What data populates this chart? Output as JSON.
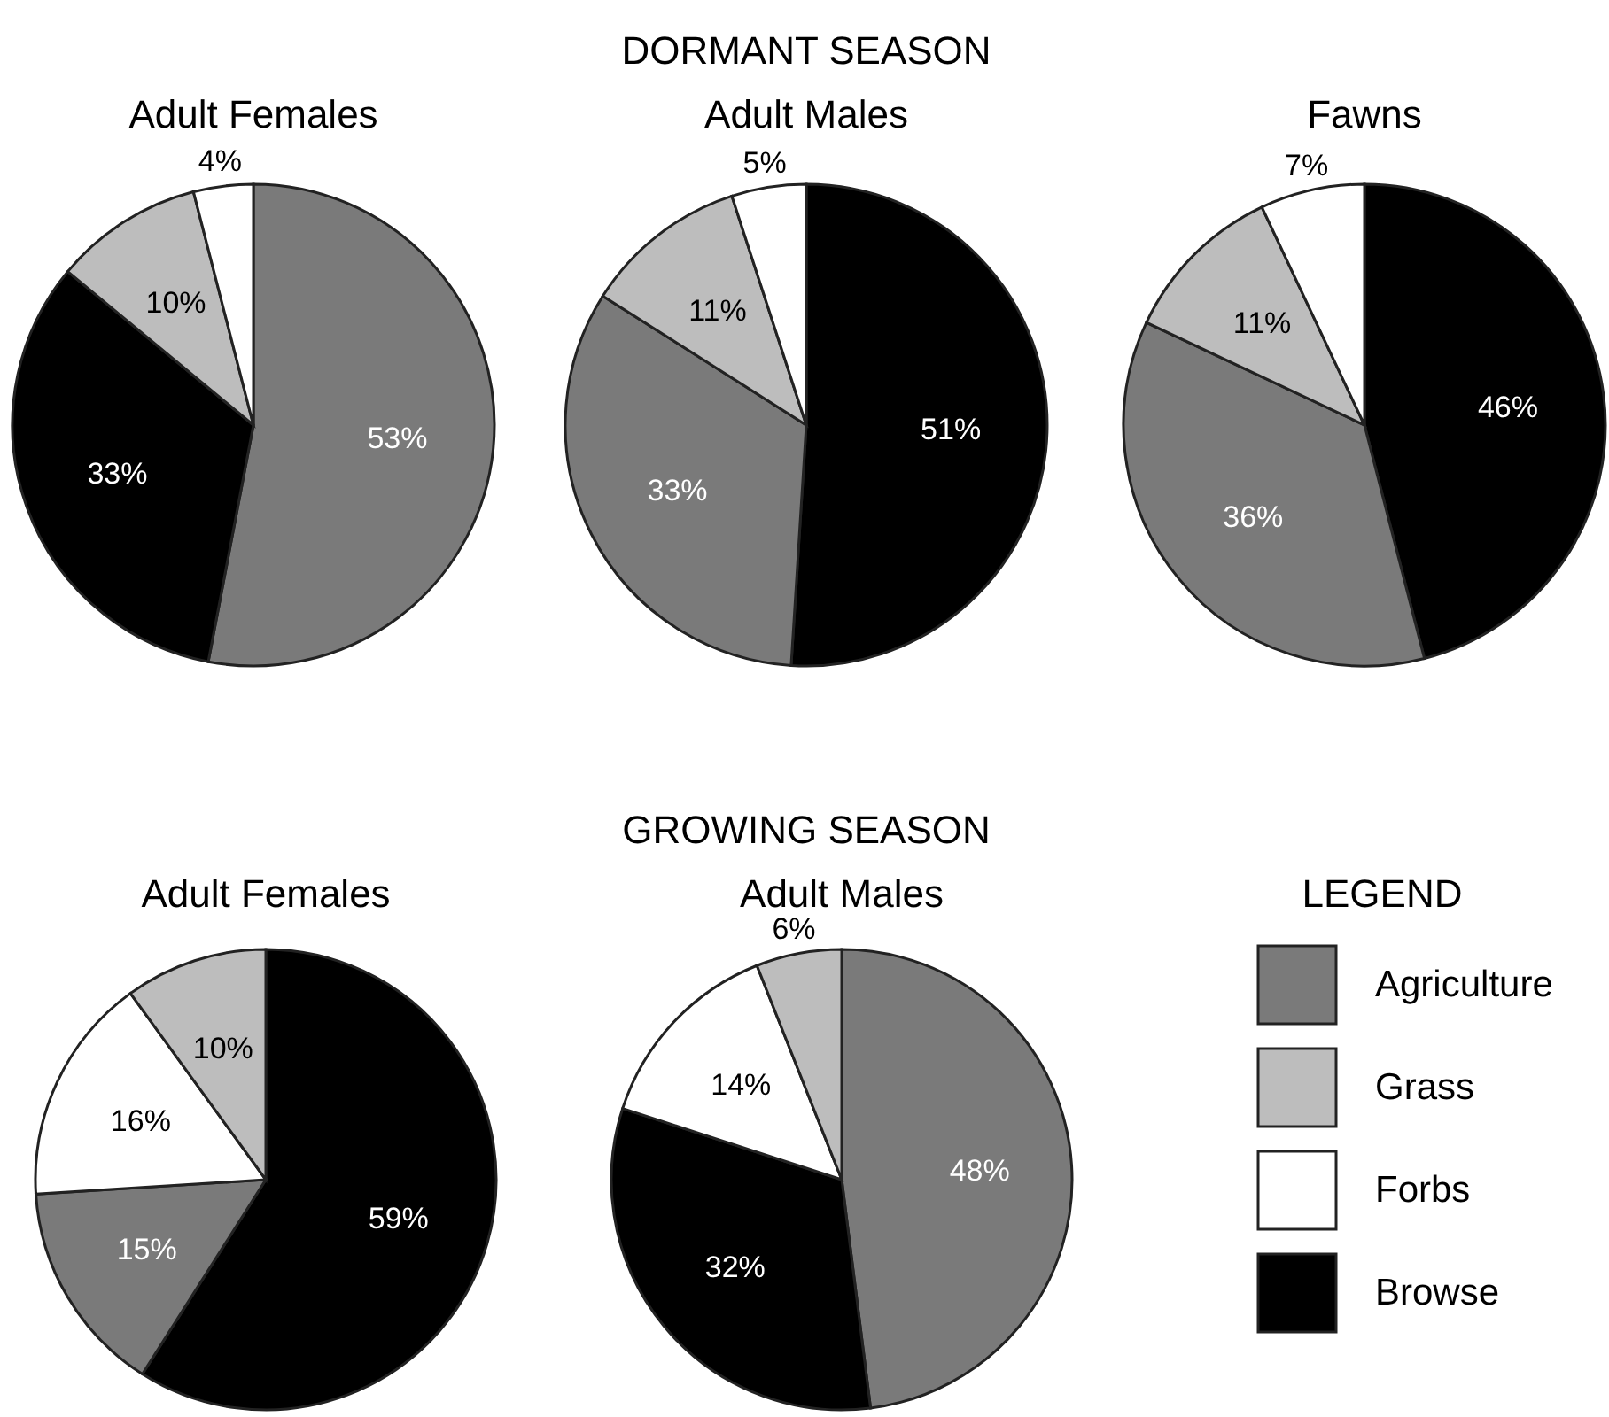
{
  "chart_data": [
    {
      "type": "pie",
      "title": "Adult Females",
      "annotations": [
        "DORMANT SEASON"
      ],
      "categories": [
        null,
        null,
        null,
        null
      ],
      "values": [
        53,
        33,
        10,
        4
      ],
      "value_labels": [
        "53%",
        "33%",
        "10%",
        "4%"
      ],
      "colors": [
        "#7a7a7a",
        "#000000",
        "#bdbdbd",
        "#ffffff"
      ]
    },
    {
      "type": "pie",
      "title": "Adult Males",
      "categories": [
        null,
        null,
        null,
        null
      ],
      "values": [
        51,
        33,
        11,
        5
      ],
      "value_labels": [
        "51%",
        "33%",
        "11%",
        "5%"
      ],
      "colors": [
        "#000000",
        "#7a7a7a",
        "#bdbdbd",
        "#ffffff"
      ]
    },
    {
      "type": "pie",
      "title": "Fawns",
      "categories": [
        null,
        null,
        null,
        null
      ],
      "values": [
        46,
        36,
        11,
        7
      ],
      "value_labels": [
        "46%",
        "36%",
        "11%",
        "7%"
      ],
      "colors": [
        "#000000",
        "#7a7a7a",
        "#bdbdbd",
        "#ffffff"
      ]
    },
    {
      "type": "pie",
      "title": "Adult Females",
      "annotations": [
        "GROWING SEASON"
      ],
      "categories": [
        null,
        null,
        null,
        null
      ],
      "values": [
        59,
        15,
        16,
        10
      ],
      "value_labels": [
        "59%",
        "15%",
        "16%",
        "10%"
      ],
      "colors": [
        "#000000",
        "#7a7a7a",
        "#ffffff",
        "#bdbdbd"
      ]
    },
    {
      "type": "pie",
      "title": "Adult Males",
      "categories": [
        null,
        null,
        null,
        null
      ],
      "values": [
        48,
        32,
        14,
        6
      ],
      "value_labels": [
        "48%",
        "32%",
        "14%",
        "6%"
      ],
      "colors": [
        "#7a7a7a",
        "#000000",
        "#ffffff",
        "#bdbdbd"
      ]
    },
    {
      "type": "other",
      "title": "LEGEND",
      "categories": [
        "Agriculture",
        "Grass",
        "Forbs",
        "Browse"
      ],
      "colors": [
        "#7a7a7a",
        "#bdbdbd",
        "#ffffff",
        "#000000"
      ]
    }
  ]
}
